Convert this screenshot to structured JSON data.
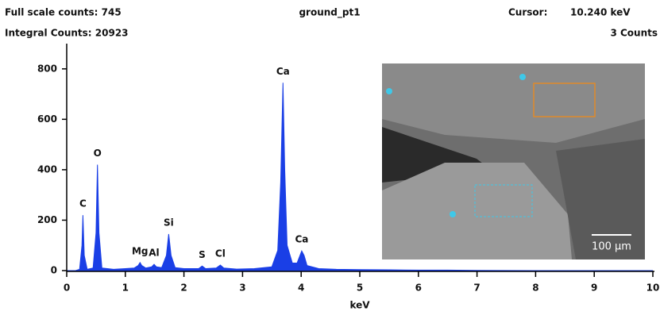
{
  "header": {
    "full_scale": "Full scale counts: 745",
    "integral": "Integral Counts: 20923",
    "title": "ground_pt1",
    "cursor_label": "Cursor:",
    "cursor_value": "10.240 keV",
    "cursor_counts": "3 Counts"
  },
  "chart_data": {
    "type": "area",
    "color": "#1a3fe6",
    "x_label": "keV",
    "x": [
      0,
      0.15,
      0.22,
      0.26,
      0.277,
      0.3,
      0.35,
      0.45,
      0.5,
      0.525,
      0.55,
      0.6,
      0.8,
      1.0,
      1.15,
      1.22,
      1.25,
      1.28,
      1.35,
      1.45,
      1.49,
      1.53,
      1.62,
      1.7,
      1.74,
      1.78,
      1.85,
      2.0,
      2.25,
      2.31,
      2.37,
      2.55,
      2.62,
      2.68,
      2.9,
      3.2,
      3.5,
      3.6,
      3.65,
      3.69,
      3.72,
      3.76,
      3.85,
      3.93,
      3.98,
      4.01,
      4.05,
      4.1,
      4.3,
      4.6,
      5.0,
      5.5,
      6.0,
      6.5,
      7,
      8,
      9,
      10
    ],
    "values": [
      0,
      0,
      5,
      100,
      220,
      60,
      5,
      10,
      150,
      420,
      150,
      10,
      5,
      8,
      10,
      20,
      32,
      20,
      10,
      15,
      25,
      15,
      12,
      60,
      145,
      60,
      12,
      8,
      8,
      18,
      8,
      10,
      22,
      10,
      6,
      8,
      15,
      80,
      350,
      745,
      400,
      100,
      30,
      30,
      60,
      78,
      60,
      20,
      8,
      5,
      4,
      3,
      2,
      2,
      1,
      0,
      0,
      0
    ],
    "xlim": [
      0,
      10
    ],
    "xticks": [
      0,
      1,
      2,
      3,
      4,
      5,
      6,
      7,
      8,
      9,
      10
    ],
    "ylim": [
      0,
      900
    ],
    "yticks": [
      0,
      200,
      400,
      600,
      800
    ],
    "annotations": [
      {
        "text": "C",
        "x": 0.277,
        "y": 220
      },
      {
        "text": "O",
        "x": 0.525,
        "y": 420
      },
      {
        "text": "Mg",
        "x": 1.25,
        "y": 32
      },
      {
        "text": "Al",
        "x": 1.49,
        "y": 25
      },
      {
        "text": "Si",
        "x": 1.74,
        "y": 145
      },
      {
        "text": "S",
        "x": 2.31,
        "y": 18
      },
      {
        "text": "Cl",
        "x": 2.62,
        "y": 22
      },
      {
        "text": "Ca",
        "x": 3.69,
        "y": 745
      },
      {
        "text": "Ca",
        "x": 4.01,
        "y": 78
      }
    ]
  },
  "inset": {
    "scale_bar": "100 µm"
  }
}
